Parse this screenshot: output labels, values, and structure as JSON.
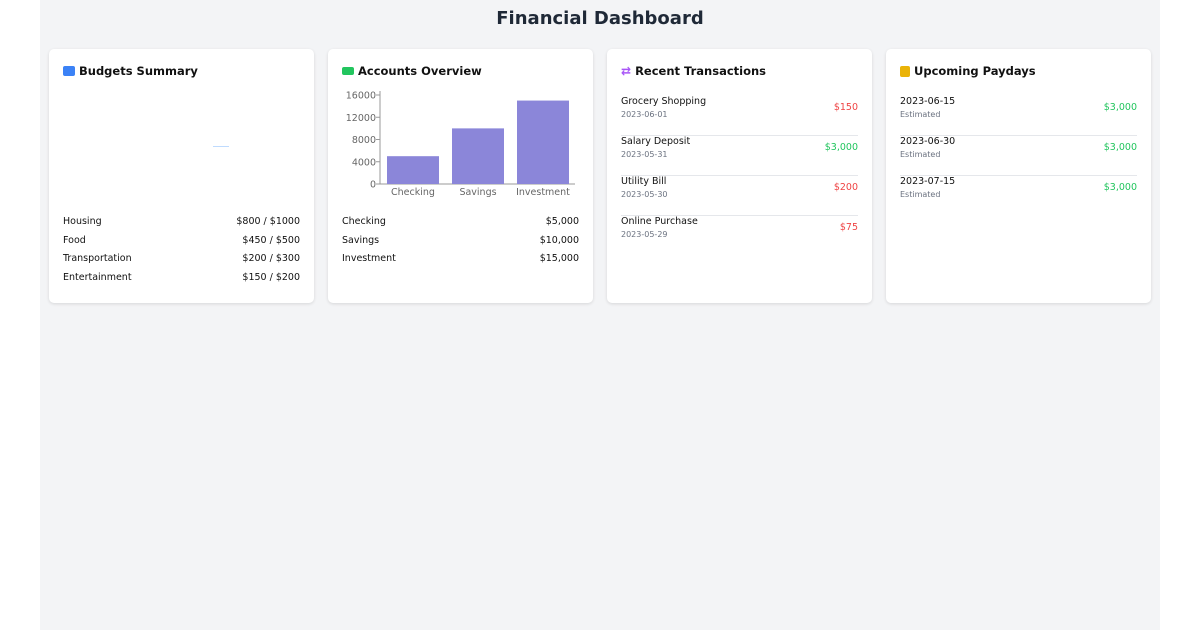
{
  "title": "Financial Dashboard",
  "colors": {
    "bar": "#8b86d9",
    "negative": "#ef4444",
    "positive": "#22c55e"
  },
  "budgets": {
    "title": "Budgets Summary",
    "icon": "wallet-icon",
    "items": [
      {
        "label": "Housing",
        "value": "$800 / $1000"
      },
      {
        "label": "Food",
        "value": "$450 / $500"
      },
      {
        "label": "Transportation",
        "value": "$200 / $300"
      },
      {
        "label": "Entertainment",
        "value": "$150 / $200"
      }
    ]
  },
  "accounts": {
    "title": "Accounts Overview",
    "icon": "money-bill-icon",
    "items": [
      {
        "label": "Checking",
        "value": "$5,000"
      },
      {
        "label": "Savings",
        "value": "$10,000"
      },
      {
        "label": "Investment",
        "value": "$15,000"
      }
    ]
  },
  "chart_data": {
    "type": "bar",
    "categories": [
      "Checking",
      "Savings",
      "Investment"
    ],
    "values": [
      5000,
      10000,
      15000
    ],
    "ylim": [
      0,
      16000
    ],
    "yticks": [
      "0",
      "4000",
      "8000",
      "12000",
      "16000"
    ]
  },
  "transactions": {
    "title": "Recent Transactions",
    "icon": "exchange-icon",
    "items": [
      {
        "name": "Grocery Shopping",
        "date": "2023-06-01",
        "amount": "$150",
        "type": "debit"
      },
      {
        "name": "Salary Deposit",
        "date": "2023-05-31",
        "amount": "$3,000",
        "type": "credit"
      },
      {
        "name": "Utility Bill",
        "date": "2023-05-30",
        "amount": "$200",
        "type": "debit"
      },
      {
        "name": "Online Purchase",
        "date": "2023-05-29",
        "amount": "$75",
        "type": "debit"
      }
    ]
  },
  "paydays": {
    "title": "Upcoming Paydays",
    "icon": "calendar-icon",
    "items": [
      {
        "date": "2023-06-15",
        "note": "Estimated",
        "amount": "$3,000"
      },
      {
        "date": "2023-06-30",
        "note": "Estimated",
        "amount": "$3,000"
      },
      {
        "date": "2023-07-15",
        "note": "Estimated",
        "amount": "$3,000"
      }
    ]
  }
}
